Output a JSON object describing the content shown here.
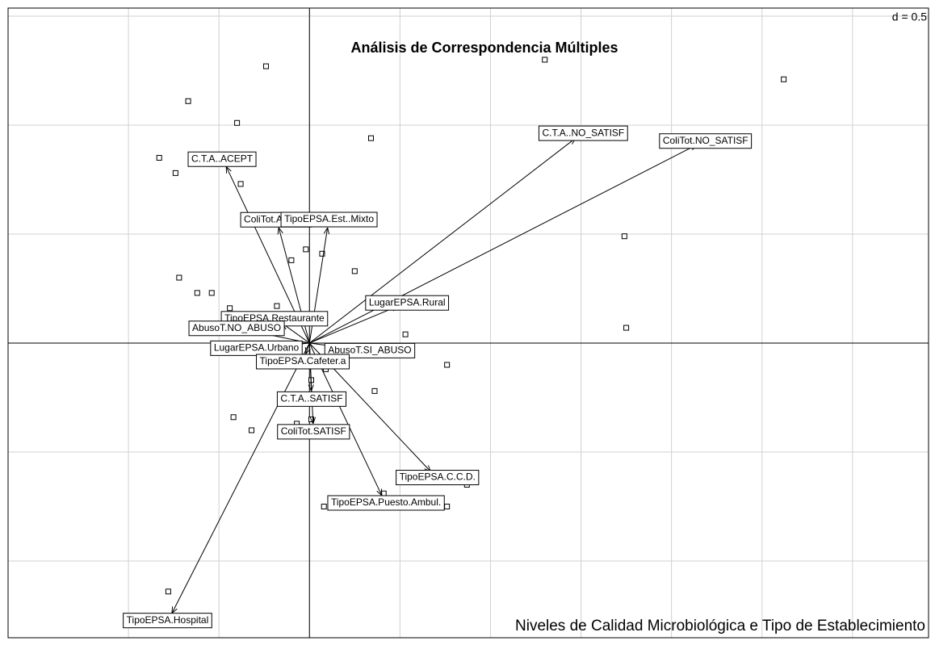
{
  "chart_data": {
    "type": "biplot",
    "title": "Análisis de Correspondencia Múltiples",
    "subtitle": "Niveles de Calidad Microbiológica e Tipo de Establecimiento",
    "scale_label": "d = 0.5",
    "xlim": [
      -1.665,
      3.42
    ],
    "ylim": [
      -1.352,
      1.537
    ],
    "xticks": [
      -1,
      -0.5,
      0,
      0.5,
      1,
      1.5,
      2,
      2.5,
      3
    ],
    "yticks": [
      -1,
      -0.5,
      0,
      0.5,
      1,
      1.5
    ],
    "grid": true,
    "points": {
      "x": [
        -0.24,
        -0.67,
        -0.4,
        -0.83,
        -0.74,
        -0.38,
        0.34,
        1.3,
        2.62,
        1.74,
        1.75,
        -0.72,
        -0.62,
        -0.54,
        -0.44,
        -0.18,
        -0.1,
        -0.02,
        0.07,
        0.25,
        -0.08,
        0.53,
        0.76,
        0.09,
        0.01,
        0.36,
        -0.42,
        -0.32,
        -0.07,
        0.01,
        0.41,
        0.08,
        0.76,
        0.87,
        -0.78
      ],
      "y": [
        1.27,
        1.11,
        1.01,
        0.85,
        0.78,
        0.73,
        0.94,
        1.3,
        1.21,
        0.49,
        0.07,
        0.3,
        0.23,
        0.23,
        0.16,
        0.17,
        0.38,
        0.43,
        0.41,
        0.33,
        0.1,
        0.04,
        -0.1,
        -0.12,
        -0.17,
        -0.22,
        -0.34,
        -0.4,
        -0.37,
        -0.35,
        -0.69,
        -0.75,
        -0.75,
        -0.65,
        -1.14
      ]
    },
    "arrows": [
      {
        "label": "C.T.A..ACEPT",
        "x": -0.46,
        "y": 0.81
      },
      {
        "label": "ColiTot.ACEPT",
        "x": -0.17,
        "y": 0.53
      },
      {
        "label": "TipoEPSA.Est..Mixto",
        "x": 0.1,
        "y": 0.53
      },
      {
        "label": "C.T.A..NO_SATISF",
        "x": 1.47,
        "y": 0.94
      },
      {
        "label": "ColiTot.NO_SATISF",
        "x": 2.14,
        "y": 0.91
      },
      {
        "label": "LugarEPSA.Rural",
        "x": 0.49,
        "y": 0.17
      },
      {
        "label": "TipoEPSA.Restaurante",
        "x": -0.15,
        "y": 0.09
      },
      {
        "label": "AbusoT.NO_ABUSO",
        "x": -0.35,
        "y": 0.06
      },
      {
        "label": "LugarEPSA.Urbano",
        "x": -0.24,
        "y": -0.02
      },
      {
        "label": "AbusoT.SI_ABUSO",
        "x": 0.28,
        "y": -0.03
      },
      {
        "label": "C.T.A..SATISF",
        "x": 0.01,
        "y": -0.22
      },
      {
        "label": "ColiTot.SATISF",
        "x": 0.02,
        "y": -0.37
      },
      {
        "label": "TipoEPSA.C.C.D.",
        "x": 0.67,
        "y": -0.59
      },
      {
        "label": "TipoEPSA.Puesto.Ambul.",
        "x": 0.4,
        "y": -0.7
      },
      {
        "label": "TipoEPSA.Hospital",
        "x": -0.76,
        "y": -1.24
      },
      {
        "label": "TipoEPSA.Cafeter.a",
        "x": -0.02,
        "y": -0.05
      }
    ]
  }
}
